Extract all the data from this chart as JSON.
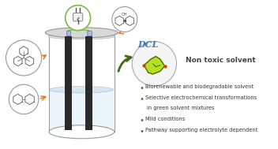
{
  "bullet_points": [
    "Biorenewable and biodegradable solvent",
    "Selective electrochemical transformations",
    "in green solvent mixtures",
    "Mild conditions",
    "Pathway supporting electrolyte dependent"
  ],
  "non_toxic_label": "Non toxic solvent",
  "background_color": "#ffffff",
  "bullet_color": "#4d7a29",
  "orange_color": "#e07820",
  "gray_color": "#999999",
  "dark_color": "#333333",
  "electrode_color": "#2a2a2a",
  "liquid_color": "#ddeef5",
  "lid_color": "#d8d8d8",
  "green_arrow_color": "#3d6b14",
  "blue_connector_color": "#5577bb",
  "dcl_text_color": "#4477aa",
  "nontoxic_color": "#444444"
}
